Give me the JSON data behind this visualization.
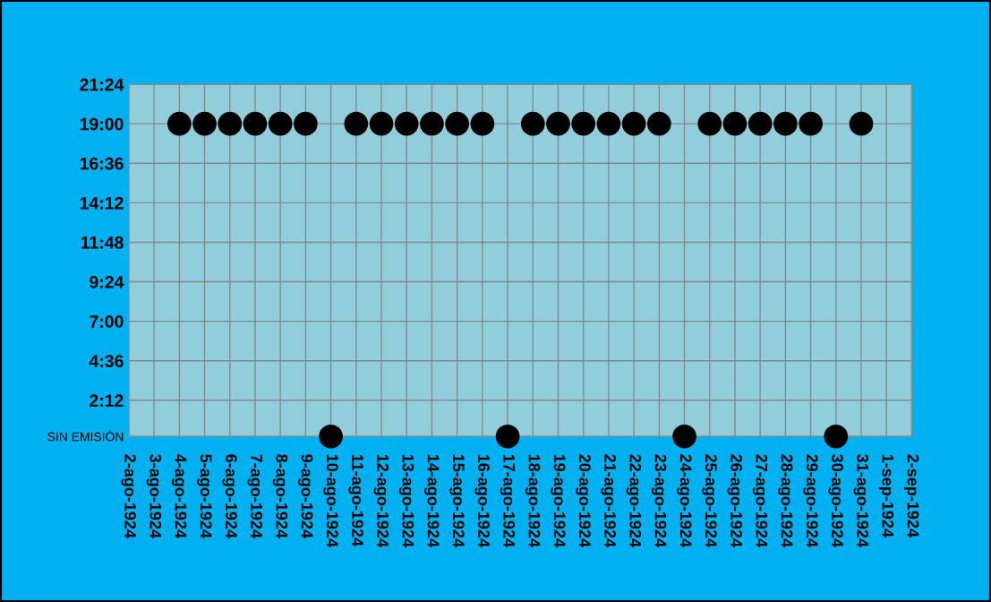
{
  "chart_data": {
    "type": "scatter",
    "categories": [
      "2-ago-1924",
      "3-ago-1924",
      "4-ago-1924",
      "5-ago-1924",
      "6-ago-1924",
      "7-ago-1924",
      "8-ago-1924",
      "9-ago-1924",
      "10-ago-1924",
      "11-ago-1924",
      "12-ago-1924",
      "13-ago-1924",
      "14-ago-1924",
      "15-ago-1924",
      "16-ago-1924",
      "17-ago-1924",
      "18-ago-1924",
      "19-ago-1924",
      "20-ago-1924",
      "21-ago-1924",
      "22-ago-1924",
      "23-ago-1924",
      "24-ago-1924",
      "25-ago-1924",
      "26-ago-1924",
      "27-ago-1924",
      "28-ago-1924",
      "29-ago-1924",
      "30-ago-1924",
      "31-ago-1924",
      "1-sep-1924",
      "2-sep-1924"
    ],
    "series": [
      {
        "color": "#000000",
        "values": [
          null,
          null,
          19,
          19,
          19,
          19,
          19,
          19,
          0,
          19,
          19,
          19,
          19,
          19,
          19,
          0,
          19,
          19,
          19,
          19,
          19,
          19,
          0,
          19,
          19,
          19,
          19,
          19,
          0,
          19,
          null,
          null
        ]
      }
    ],
    "ylim": [
      0,
      21.4
    ],
    "yticks": [
      {
        "value": 0,
        "label": "SIN EMISIÓN"
      },
      {
        "value": 2.2,
        "label": "2:12"
      },
      {
        "value": 4.6,
        "label": "4:36"
      },
      {
        "value": 7.0,
        "label": "7:00"
      },
      {
        "value": 9.4,
        "label": "9:24"
      },
      {
        "value": 11.8,
        "label": "11:48"
      },
      {
        "value": 14.2,
        "label": "14:12"
      },
      {
        "value": 16.6,
        "label": "16:36"
      },
      {
        "value": 19.0,
        "label": "19:00"
      },
      {
        "value": 21.4,
        "label": "21:24"
      }
    ],
    "grid": true,
    "marker": "circle",
    "legend": false
  }
}
